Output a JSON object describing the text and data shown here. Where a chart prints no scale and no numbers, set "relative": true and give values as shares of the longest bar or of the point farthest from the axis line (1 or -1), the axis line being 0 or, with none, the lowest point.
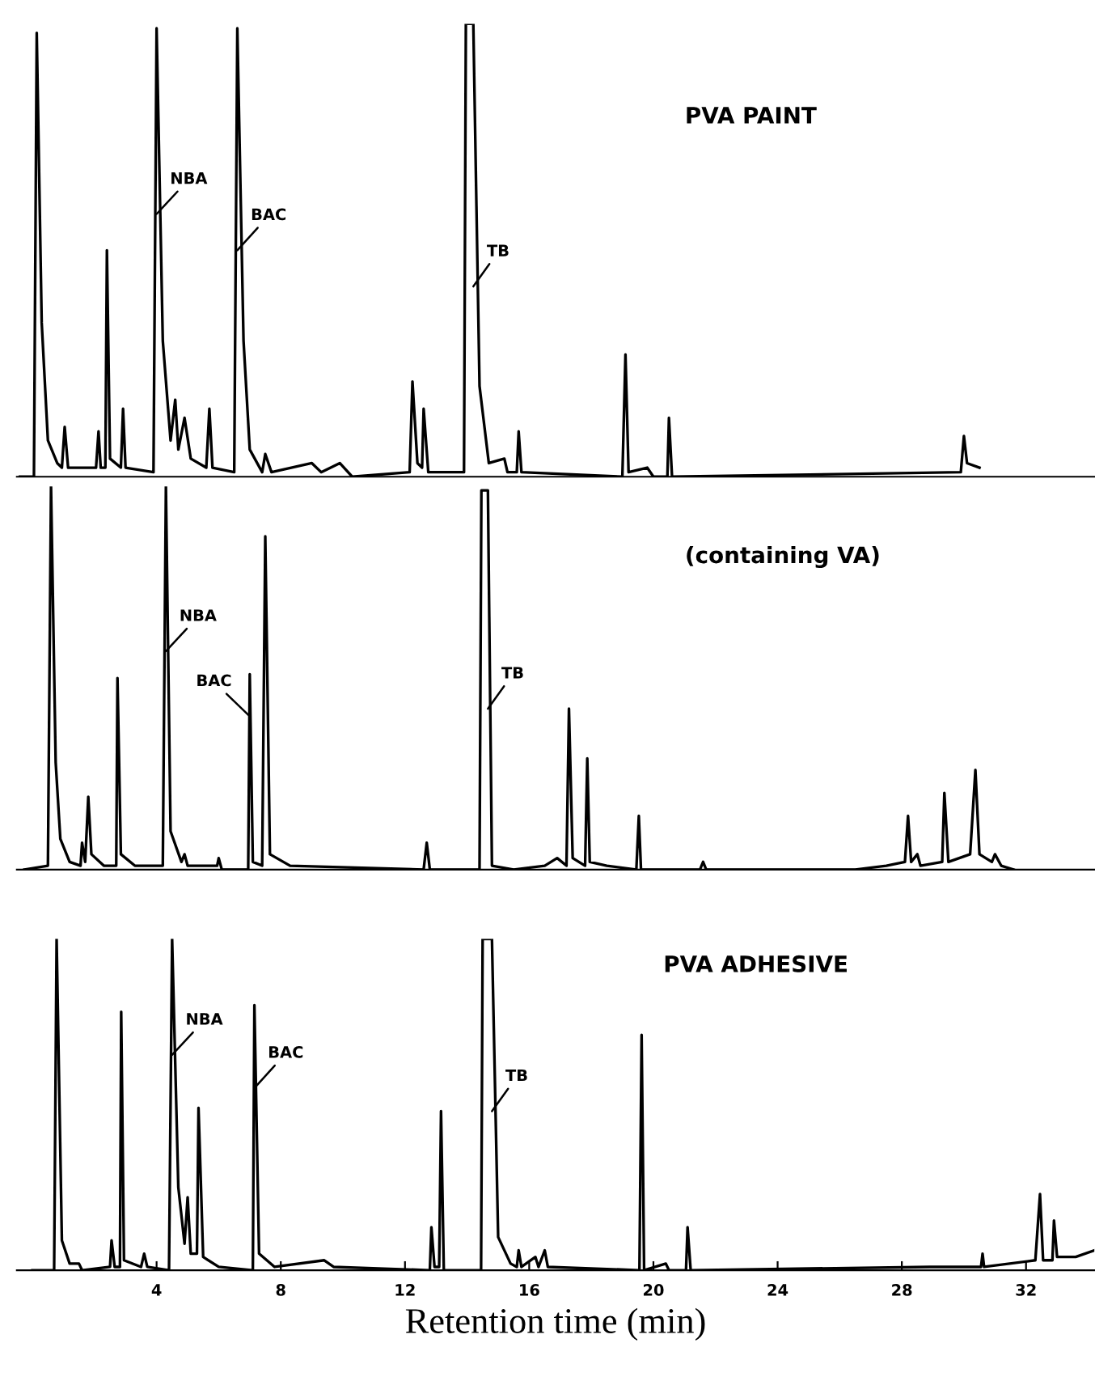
{
  "chart_data": [
    {
      "type": "line",
      "title": "PVA PAINT",
      "relative": true,
      "legend": false,
      "grid": false,
      "tick_labels": false,
      "xlim": [
        -0.5,
        34.2
      ],
      "x": [
        -0.4,
        0.05,
        0.14,
        0.3,
        0.5,
        0.8,
        0.95,
        1.04,
        1.15,
        2.05,
        2.13,
        2.2,
        2.35,
        2.4,
        2.5,
        2.85,
        2.92,
        3.0,
        3.9,
        4.0,
        4.2,
        4.45,
        4.6,
        4.7,
        4.9,
        5.1,
        5.6,
        5.7,
        5.8,
        6.5,
        6.6,
        6.8,
        7.0,
        7.4,
        7.5,
        7.7,
        9.0,
        9.3,
        9.9,
        10.3,
        12.15,
        12.24,
        12.4,
        12.55,
        12.6,
        12.75,
        13.9,
        13.96,
        14.2,
        14.4,
        14.7,
        15.2,
        15.3,
        15.6,
        15.66,
        15.75,
        19.0,
        19.1,
        19.2,
        19.8,
        20.0,
        20.45,
        20.5,
        20.6,
        29.9,
        30.0,
        30.1,
        30.5
      ],
      "series": [
        {
          "color": "#000000",
          "values": [
            0,
            0,
            0.98,
            0.34,
            0.08,
            0.03,
            0.02,
            0.11,
            0.02,
            0.02,
            0.1,
            0.02,
            0.02,
            0.5,
            0.04,
            0.02,
            0.15,
            0.02,
            0.01,
            0.99,
            0.3,
            0.08,
            0.17,
            0.06,
            0.13,
            0.04,
            0.02,
            0.15,
            0.02,
            0.01,
            0.99,
            0.3,
            0.06,
            0.01,
            0.05,
            0.01,
            0.03,
            0.01,
            0.03,
            0.0,
            0.01,
            0.21,
            0.03,
            0.02,
            0.15,
            0.01,
            0.01,
            1.0,
            1.0,
            0.2,
            0.03,
            0.04,
            0.01,
            0.01,
            0.1,
            0.01,
            0.0,
            0.27,
            0.01,
            0.02,
            0.0,
            0.0,
            0.13,
            0.0,
            0.01,
            0.09,
            0.03,
            0.02
          ]
        }
      ],
      "annotations": [
        {
          "text": "NBA",
          "x": 4.0,
          "y": 0.58
        },
        {
          "text": "BAC",
          "x": 6.6,
          "y": 0.5
        },
        {
          "text": "TB",
          "x": 14.2,
          "y": 0.42
        }
      ]
    },
    {
      "type": "line",
      "title": "(containing VA)",
      "relative": true,
      "legend": false,
      "grid": false,
      "tick_labels": false,
      "xlim": [
        -0.5,
        34.2
      ],
      "x": [
        -0.26,
        0.5,
        0.6,
        0.75,
        0.9,
        1.2,
        1.55,
        1.6,
        1.7,
        1.8,
        1.9,
        2.3,
        2.7,
        2.74,
        2.85,
        3.3,
        4.2,
        4.3,
        4.45,
        4.8,
        4.9,
        5.0,
        5.95,
        6.0,
        6.1,
        6.95,
        7.0,
        7.1,
        7.4,
        7.5,
        7.65,
        8.3,
        12.6,
        12.7,
        12.8,
        14.4,
        14.46,
        14.67,
        14.8,
        15.5,
        16.5,
        16.9,
        17.2,
        17.28,
        17.4,
        17.8,
        17.87,
        17.95,
        18.5,
        19.45,
        19.53,
        19.6,
        21.5,
        21.6,
        21.7,
        26.5,
        27.5,
        28.1,
        28.2,
        28.3,
        28.5,
        28.6,
        29.3,
        29.37,
        29.5,
        30.2,
        30.37,
        30.5,
        30.9,
        31.0,
        31.2,
        31.6
      ],
      "series": [
        {
          "color": "#000000",
          "values": [
            0,
            0.01,
            1.0,
            0.28,
            0.08,
            0.02,
            0.01,
            0.07,
            0.02,
            0.19,
            0.04,
            0.01,
            0.01,
            0.5,
            0.04,
            0.01,
            0.01,
            1.0,
            0.1,
            0.02,
            0.04,
            0.01,
            0.01,
            0.03,
            0.0,
            0.0,
            0.51,
            0.02,
            0.01,
            0.87,
            0.04,
            0.01,
            0.0,
            0.07,
            0.0,
            0.0,
            0.99,
            0.99,
            0.01,
            0.0,
            0.01,
            0.03,
            0.01,
            0.42,
            0.03,
            0.01,
            0.29,
            0.02,
            0.01,
            0.0,
            0.14,
            0.0,
            0.0,
            0.02,
            0.0,
            0.0,
            0.01,
            0.02,
            0.14,
            0.02,
            0.04,
            0.01,
            0.02,
            0.2,
            0.02,
            0.04,
            0.26,
            0.04,
            0.02,
            0.04,
            0.01,
            0.0
          ]
        }
      ],
      "annotations": [
        {
          "text": "NBA",
          "x": 4.3,
          "y": 0.57
        },
        {
          "text": "BAC",
          "x": 7.0,
          "y": 0.4
        },
        {
          "text": "TB",
          "x": 14.67,
          "y": 0.42
        }
      ]
    },
    {
      "type": "line",
      "title": "PVA ADHESIVE",
      "xlabel": "Retention time (min)",
      "relative": true,
      "legend": false,
      "grid": false,
      "tick_labels": "x",
      "xlim": [
        -0.5,
        34.2
      ],
      "xticks": [
        4,
        8,
        12,
        16,
        20,
        24,
        28,
        32
      ],
      "x": [
        0,
        0.7,
        0.78,
        0.95,
        1.2,
        1.5,
        1.6,
        2.5,
        2.55,
        2.65,
        2.82,
        2.86,
        2.95,
        3.5,
        3.6,
        3.7,
        4.4,
        4.5,
        4.7,
        4.9,
        5.0,
        5.1,
        5.3,
        5.35,
        5.5,
        6.0,
        7.1,
        7.15,
        7.3,
        7.8,
        9.4,
        9.7,
        12.8,
        12.85,
        12.95,
        13.1,
        13.16,
        13.25,
        14.45,
        14.5,
        14.8,
        15.0,
        15.4,
        15.6,
        15.66,
        15.75,
        16.2,
        16.3,
        16.5,
        16.6,
        19.55,
        19.62,
        19.7,
        20.4,
        20.5,
        21.05,
        21.1,
        21.2,
        28.9,
        30.55,
        30.6,
        30.65,
        32.3,
        32.45,
        32.55,
        32.85,
        32.9,
        33.0,
        33.6,
        34.2
      ],
      "series": [
        {
          "color": "#000000",
          "values": [
            0,
            0,
            1.0,
            0.09,
            0.02,
            0.02,
            0.0,
            0.01,
            0.09,
            0.01,
            0.01,
            0.78,
            0.03,
            0.01,
            0.05,
            0.01,
            0.0,
            1.0,
            0.25,
            0.08,
            0.22,
            0.05,
            0.05,
            0.49,
            0.04,
            0.01,
            0.0,
            0.8,
            0.05,
            0.01,
            0.03,
            0.01,
            0.0,
            0.13,
            0.01,
            0.01,
            0.48,
            0.0,
            0.0,
            1.0,
            1.0,
            0.1,
            0.02,
            0.01,
            0.06,
            0.01,
            0.04,
            0.01,
            0.06,
            0.01,
            0.0,
            0.71,
            0.0,
            0.02,
            0.0,
            0.0,
            0.13,
            0.0,
            0.01,
            0.01,
            0.05,
            0.01,
            0.03,
            0.23,
            0.03,
            0.03,
            0.15,
            0.04,
            0.04,
            0.06
          ]
        }
      ],
      "annotations": [
        {
          "text": "NBA",
          "x": 4.5,
          "y": 0.65
        },
        {
          "text": "BAC",
          "x": 7.15,
          "y": 0.55
        },
        {
          "text": "TB",
          "x": 14.8,
          "y": 0.48
        }
      ]
    }
  ]
}
